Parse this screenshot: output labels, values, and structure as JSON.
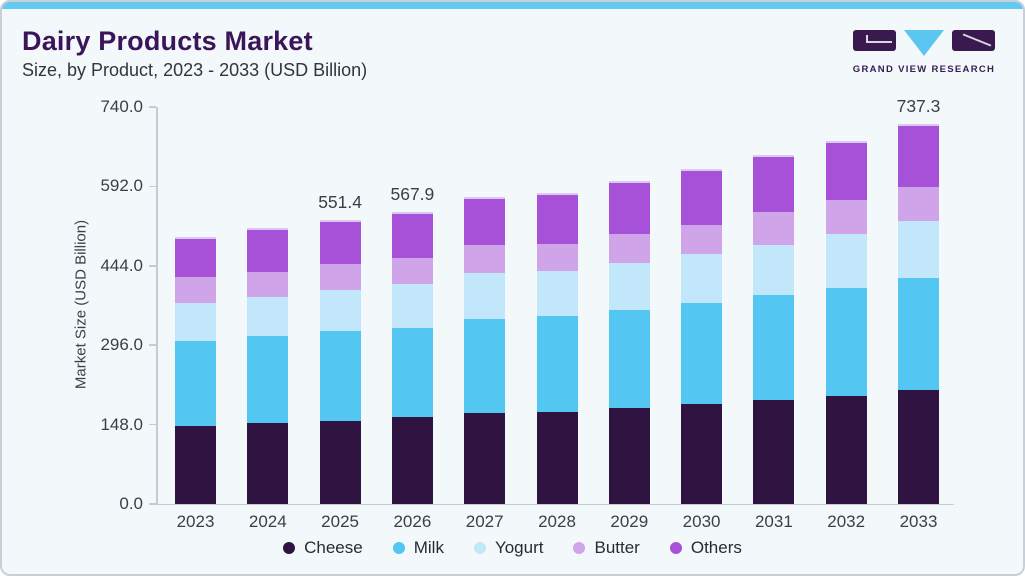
{
  "header": {
    "title": "Dairy Products Market",
    "subtitle": "Size, by Product, 2023 - 2033 (USD Billion)"
  },
  "logo": {
    "text": "GRAND VIEW RESEARCH",
    "blocks": [
      "g-block",
      "v-triangle",
      "r-block"
    ]
  },
  "colors": {
    "card_background": "#F3F8FB",
    "top_accent": "#63C9F1",
    "title": "#3B1559",
    "subtitle_text": "#2F363D",
    "axis": "#C6CCD4",
    "tick_text": "#394048",
    "logo_purple": "#3A1A4E",
    "logo_blue": "#5BC6F0"
  },
  "chart_data": {
    "type": "bar",
    "stacked": true,
    "title": "Dairy Products Market Size, by Product, 2023 - 2033 (USD Billion)",
    "xlabel": "",
    "ylabel": "Market Size (USD Billion)",
    "ylim": [
      0,
      740
    ],
    "yticks": [
      0,
      148,
      296,
      444,
      592,
      740
    ],
    "ytick_labels": [
      "0.0",
      "148.0",
      "296.0",
      "444.0",
      "592.0",
      "740.0"
    ],
    "grid": false,
    "legend_position": "bottom",
    "categories": [
      "2023",
      "2024",
      "2025",
      "2026",
      "2027",
      "2028",
      "2029",
      "2030",
      "2031",
      "2032",
      "2033"
    ],
    "series": [
      {
        "name": "Cheese",
        "color": "#2F1442",
        "values": [
          152.4,
          156.9,
          161.9,
          168.1,
          177.7,
          179.0,
          186.0,
          193.8,
          201.6,
          210.1,
          222.3
        ]
      },
      {
        "name": "Milk",
        "color": "#53C6F2",
        "values": [
          165.1,
          169.7,
          174.3,
          173.0,
          182.5,
          186.4,
          191.1,
          197.5,
          203.9,
          210.3,
          216.6
        ]
      },
      {
        "name": "Yogurt",
        "color": "#C2E7FA",
        "values": [
          73.8,
          76.3,
          79.7,
          86.1,
          89.3,
          86.6,
          90.5,
          93.8,
          97.1,
          103.5,
          110.4
        ]
      },
      {
        "name": "Butter",
        "color": "#CFA4E8",
        "values": [
          49.1,
          48.0,
          49.4,
          51.4,
          53.8,
          53.8,
          56.3,
          57.7,
          65.4,
          66.0,
          65.4
        ]
      },
      {
        "name": "Others",
        "color": "#A651D8",
        "values": [
          77.7,
          85.4,
          86.1,
          89.3,
          93.8,
          99.0,
          102.9,
          107.4,
          109.3,
          114.6,
          122.6
        ]
      }
    ],
    "totals": [
      518.1,
      536.3,
      551.4,
      567.9,
      597.1,
      604.8,
      626.8,
      650.2,
      677.3,
      704.5,
      737.3
    ],
    "bar_labels": [
      "",
      "",
      "551.4",
      "567.9",
      "",
      "",
      "",
      "",
      "",
      "",
      "737.3"
    ]
  }
}
